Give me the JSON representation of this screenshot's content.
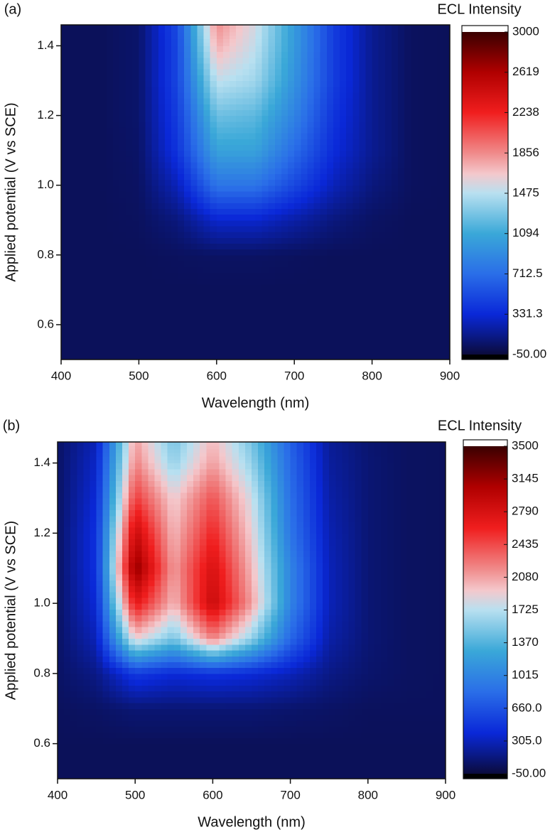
{
  "chart_data": [
    {
      "type": "contour",
      "label": "(a)",
      "colorbar_title": "ECL Intensity",
      "xlabel": "Wavelength (nm)",
      "ylabel": "Applied potential (V vs SCE)",
      "x": [
        400,
        450,
        500,
        550,
        600,
        650,
        700,
        750,
        800,
        850,
        900
      ],
      "y": [
        0.5,
        0.6,
        0.7,
        0.8,
        0.9,
        1.0,
        1.1,
        1.2,
        1.3,
        1.4,
        1.46
      ],
      "z": [
        [
          20,
          20,
          20,
          20,
          20,
          20,
          20,
          20,
          20,
          20,
          20
        ],
        [
          20,
          20,
          20,
          20,
          20,
          20,
          20,
          20,
          20,
          20,
          20
        ],
        [
          20,
          20,
          20,
          20,
          20,
          20,
          20,
          20,
          20,
          20,
          20
        ],
        [
          20,
          20,
          20,
          30,
          40,
          40,
          30,
          20,
          20,
          20,
          20
        ],
        [
          20,
          20,
          30,
          100,
          300,
          300,
          200,
          100,
          40,
          20,
          20
        ],
        [
          20,
          20,
          40,
          250,
          750,
          750,
          500,
          250,
          100,
          30,
          20
        ],
        [
          20,
          20,
          50,
          400,
          1050,
          1050,
          700,
          350,
          150,
          30,
          20
        ],
        [
          20,
          20,
          60,
          450,
          1250,
          1200,
          850,
          400,
          150,
          30,
          20
        ],
        [
          20,
          20,
          60,
          500,
          1500,
          1400,
          950,
          450,
          150,
          30,
          20
        ],
        [
          20,
          20,
          60,
          500,
          1750,
          1500,
          1000,
          450,
          150,
          30,
          20
        ],
        [
          20,
          20,
          60,
          520,
          1850,
          1550,
          1000,
          450,
          150,
          30,
          20
        ]
      ],
      "xlim": [
        400,
        900
      ],
      "ylim": [
        0.5,
        1.46
      ],
      "xticks": [
        400,
        500,
        600,
        700,
        800,
        900
      ],
      "yticks": [
        0.6,
        0.8,
        {
          "value": 1,
          "label": "1.0"
        },
        1.2,
        1.4
      ],
      "clim": [
        -50,
        3000
      ],
      "cticks": [
        {
          "value": -50,
          "label": "-50.00"
        },
        331.3,
        712.5,
        1094,
        1475,
        1856,
        2238,
        2619,
        3000
      ],
      "colorscale": [
        [
          0,
          "#0b0b3c"
        ],
        [
          0.06,
          "#0a1a8a"
        ],
        [
          0.125,
          "#0a28d8"
        ],
        [
          0.25,
          "#2a6ee8"
        ],
        [
          0.375,
          "#3aa8d8"
        ],
        [
          0.5,
          "#b8e0f0"
        ],
        [
          0.56,
          "#f4c8cc"
        ],
        [
          0.625,
          "#f08a8a"
        ],
        [
          0.75,
          "#f01e1e"
        ],
        [
          0.875,
          "#b00000"
        ],
        [
          1,
          "#3a0000"
        ]
      ]
    },
    {
      "type": "contour",
      "label": "(b)",
      "colorbar_title": "ECL Intensity",
      "xlabel": "Wavelength (nm)",
      "ylabel": "Applied potential (V vs SCE)",
      "x": [
        400,
        450,
        500,
        550,
        600,
        650,
        700,
        750,
        800,
        850,
        900
      ],
      "y": [
        0.5,
        0.6,
        0.7,
        0.8,
        0.9,
        1.0,
        1.1,
        1.2,
        1.3,
        1.4,
        1.46
      ],
      "z": [
        [
          30,
          30,
          30,
          30,
          30,
          30,
          30,
          30,
          30,
          30,
          30
        ],
        [
          30,
          30,
          30,
          30,
          30,
          30,
          30,
          30,
          30,
          30,
          30
        ],
        [
          40,
          60,
          100,
          100,
          100,
          100,
          80,
          60,
          40,
          40,
          40
        ],
        [
          60,
          150,
          500,
          400,
          450,
          400,
          300,
          150,
          80,
          50,
          40
        ],
        [
          60,
          300,
          1900,
          1500,
          2200,
          1600,
          800,
          250,
          100,
          50,
          40
        ],
        [
          60,
          400,
          2700,
          2000,
          2900,
          2100,
          1000,
          300,
          100,
          50,
          40
        ],
        [
          60,
          450,
          3200,
          2100,
          2800,
          2000,
          1000,
          300,
          100,
          50,
          40
        ],
        [
          60,
          450,
          2900,
          2000,
          2600,
          1900,
          900,
          280,
          100,
          50,
          40
        ],
        [
          60,
          400,
          2500,
          1900,
          2400,
          1800,
          850,
          250,
          100,
          50,
          40
        ],
        [
          60,
          350,
          2200,
          1600,
          2100,
          1600,
          800,
          220,
          100,
          50,
          40
        ],
        [
          60,
          300,
          2100,
          1500,
          2000,
          1500,
          750,
          200,
          90,
          50,
          40
        ]
      ],
      "xlim": [
        400,
        900
      ],
      "ylim": [
        0.5,
        1.46
      ],
      "xticks": [
        400,
        500,
        600,
        700,
        800,
        900
      ],
      "yticks": [
        0.6,
        0.8,
        {
          "value": 1,
          "label": "1.0"
        },
        1.2,
        1.4
      ],
      "clim": [
        -50,
        3500
      ],
      "cticks": [
        {
          "value": -50,
          "label": "-50.00"
        },
        {
          "value": 305,
          "label": "305.0"
        },
        {
          "value": 660,
          "label": "660.0"
        },
        1015,
        1370,
        1725,
        2080,
        2435,
        2790,
        3145,
        3500
      ],
      "colorscale": [
        [
          0,
          "#0b0b3c"
        ],
        [
          0.06,
          "#0a1a8a"
        ],
        [
          0.125,
          "#0a28d8"
        ],
        [
          0.25,
          "#2a6ee8"
        ],
        [
          0.375,
          "#3aa8d8"
        ],
        [
          0.5,
          "#b8e0f0"
        ],
        [
          0.56,
          "#f4c8cc"
        ],
        [
          0.625,
          "#f08a8a"
        ],
        [
          0.75,
          "#f01e1e"
        ],
        [
          0.875,
          "#b00000"
        ],
        [
          1,
          "#3a0000"
        ]
      ]
    }
  ]
}
